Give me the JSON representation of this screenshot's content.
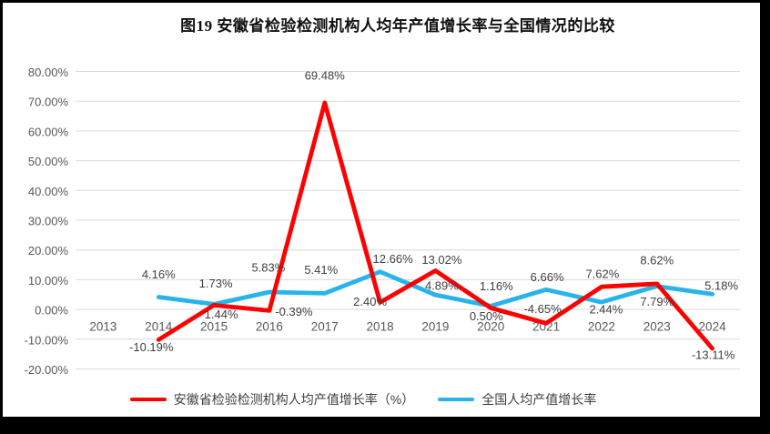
{
  "title": "图19 安徽省检验检测机构人均年产值增长率与全国情况的比较",
  "chart_data": {
    "type": "line",
    "categories": [
      "2013",
      "2014",
      "2015",
      "2016",
      "2017",
      "2018",
      "2019",
      "2020",
      "2021",
      "2022",
      "2023",
      "2024"
    ],
    "x": [
      "2014",
      "2015",
      "2016",
      "2017",
      "2018",
      "2019",
      "2020",
      "2021",
      "2022",
      "2023",
      "2024"
    ],
    "series": [
      {
        "name": "安徽省检验检测机构人均产值增长率（%）",
        "color": "#FF0000",
        "values": [
          -10.19,
          1.44,
          -0.39,
          69.48,
          2.4,
          13.02,
          0.5,
          -4.65,
          7.62,
          8.62,
          -13.11
        ],
        "labels": [
          "-10.19%",
          "1.44%",
          "-0.39%",
          "69.48%",
          "2.40%",
          "13.02%",
          "0.50%",
          "-4.65%",
          "7.62%",
          "8.62%",
          "-13.11%"
        ]
      },
      {
        "name": "全国人均产值增长率",
        "color": "#28B4EB",
        "values": [
          4.16,
          1.73,
          5.83,
          5.41,
          12.66,
          4.89,
          1.16,
          6.66,
          2.44,
          7.79,
          5.18
        ],
        "labels": [
          "4.16%",
          "1.73%",
          "5.83%",
          "5.41%",
          "12.66%",
          "4.89%",
          "1.16%",
          "6.66%",
          "2.44%",
          "7.79%",
          "5.18%"
        ]
      }
    ],
    "ylim": [
      -20,
      80
    ],
    "ytick_interval": 10,
    "ytick_labels": [
      "80.00%",
      "70.00%",
      "60.00%",
      "50.00%",
      "40.00%",
      "30.00%",
      "20.00%",
      "10.00%",
      "0.00%",
      "-10.00%",
      "-20.00%"
    ],
    "xlabel": "",
    "ylabel": "",
    "grid": "horizontal",
    "legend_position": "bottom",
    "layout": {
      "label_offsets": [
        [
          [
            -8,
            8
          ],
          [
            8,
            10
          ],
          [
            27,
            1
          ],
          [
            0,
            -30
          ],
          [
            -11,
            -1
          ],
          [
            7,
            -12
          ],
          [
            -5,
            9
          ],
          [
            -4,
            -16
          ],
          [
            1,
            -14
          ],
          [
            0,
            -26
          ],
          [
            1,
            7
          ]
        ],
        [
          [
            0,
            -25
          ],
          [
            2,
            -23
          ],
          [
            -1,
            -27
          ],
          [
            -4,
            -26
          ],
          [
            14,
            -14
          ],
          [
            7,
            -10
          ],
          [
            6,
            -22
          ],
          [
            1,
            -14
          ],
          [
            5,
            8
          ],
          [
            0,
            17
          ],
          [
            10,
            -9
          ]
        ]
      ]
    }
  },
  "colors": {
    "grid": "#D9D9D9",
    "axis_text": "#595959",
    "label_text": "#404040",
    "frame": "#000000",
    "background": "#FFFFFF"
  }
}
